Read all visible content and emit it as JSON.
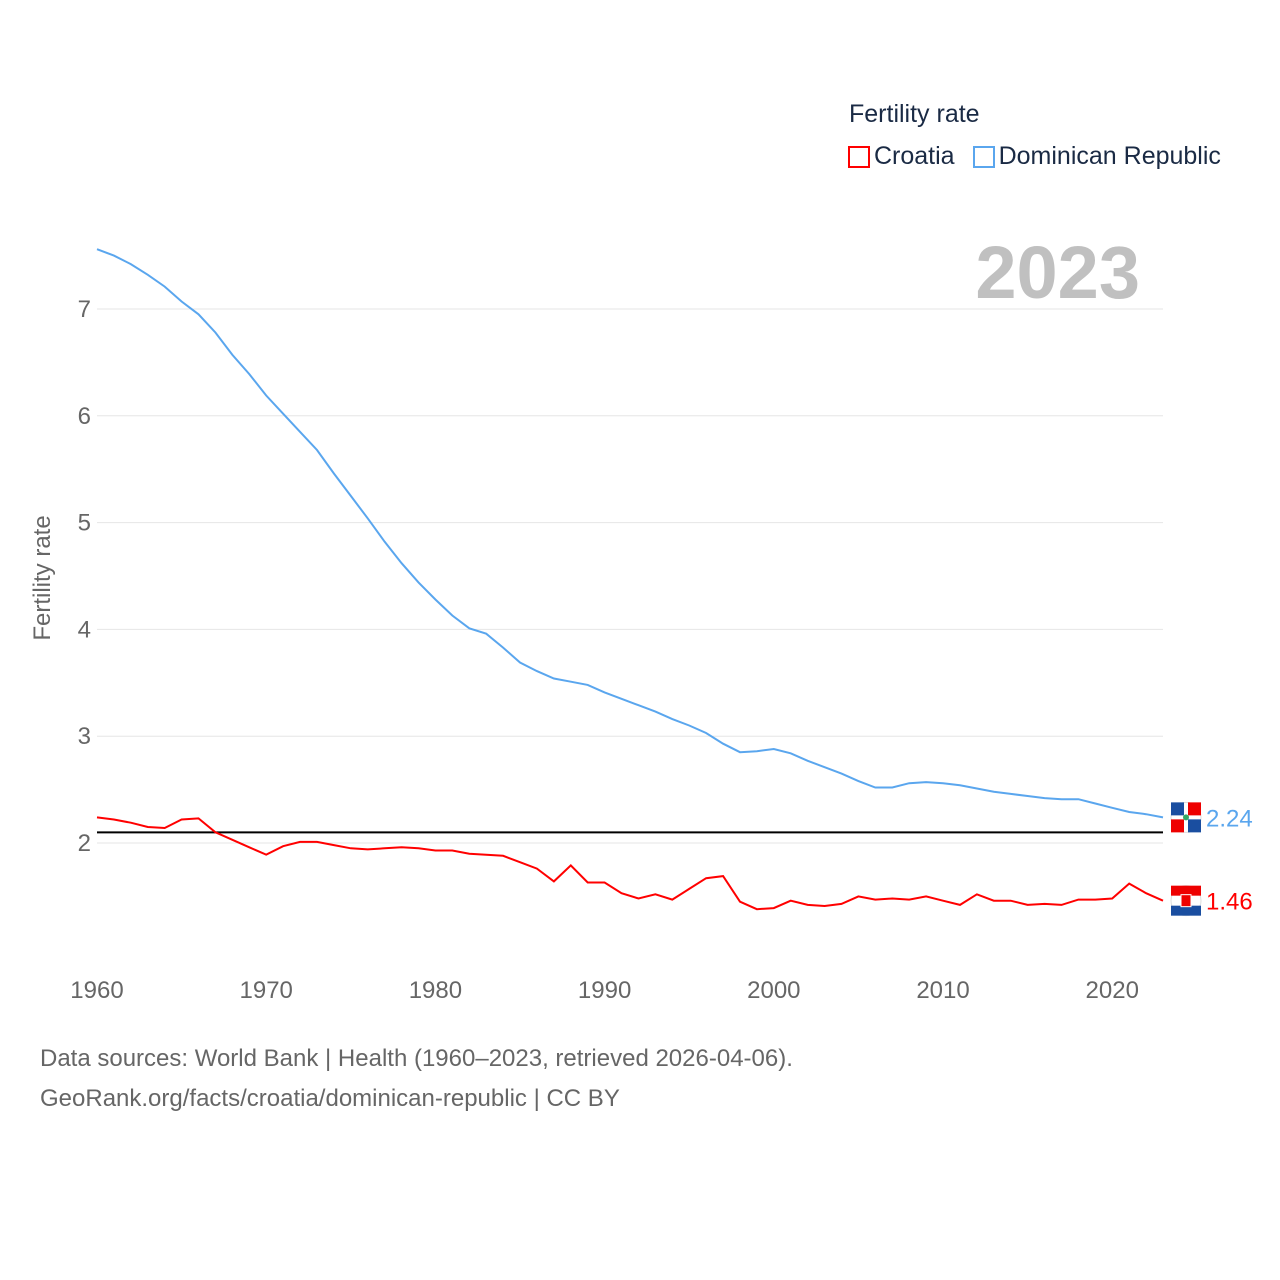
{
  "chart_data": {
    "type": "line",
    "title": "Fertility rate",
    "ylabel": "Fertility rate",
    "xlabel": "",
    "year_label": "2023",
    "xlim": [
      1960,
      2023
    ],
    "ylim": [
      1,
      7.6
    ],
    "yticks": [
      2,
      3,
      4,
      5,
      6,
      7
    ],
    "xticks": [
      1960,
      1970,
      1980,
      1990,
      2000,
      2010,
      2020
    ],
    "grid": true,
    "legend_position": "top-right",
    "reference_line": 2.1,
    "x": [
      1960,
      1961,
      1962,
      1963,
      1964,
      1965,
      1966,
      1967,
      1968,
      1969,
      1970,
      1971,
      1972,
      1973,
      1974,
      1975,
      1976,
      1977,
      1978,
      1979,
      1980,
      1981,
      1982,
      1983,
      1984,
      1985,
      1986,
      1987,
      1988,
      1989,
      1990,
      1991,
      1992,
      1993,
      1994,
      1995,
      1996,
      1997,
      1998,
      1999,
      2000,
      2001,
      2002,
      2003,
      2004,
      2005,
      2006,
      2007,
      2008,
      2009,
      2010,
      2011,
      2012,
      2013,
      2014,
      2015,
      2016,
      2017,
      2018,
      2019,
      2020,
      2021,
      2022,
      2023
    ],
    "series": [
      {
        "name": "Croatia",
        "color": "#ff0000",
        "end_label": "1.46",
        "values": [
          2.24,
          2.22,
          2.19,
          2.15,
          2.14,
          2.22,
          2.23,
          2.1,
          2.03,
          1.96,
          1.89,
          1.97,
          2.01,
          2.01,
          1.98,
          1.95,
          1.94,
          1.95,
          1.96,
          1.95,
          1.93,
          1.93,
          1.9,
          1.89,
          1.88,
          1.82,
          1.76,
          1.64,
          1.79,
          1.63,
          1.63,
          1.53,
          1.48,
          1.52,
          1.47,
          1.57,
          1.67,
          1.69,
          1.45,
          1.38,
          1.39,
          1.46,
          1.42,
          1.41,
          1.43,
          1.5,
          1.47,
          1.48,
          1.47,
          1.5,
          1.46,
          1.42,
          1.52,
          1.46,
          1.46,
          1.42,
          1.43,
          1.42,
          1.47,
          1.47,
          1.48,
          1.62,
          1.53,
          1.46
        ]
      },
      {
        "name": "Dominican Republic",
        "color": "#5aa6ee",
        "end_label": "2.24",
        "values": [
          7.56,
          7.5,
          7.42,
          7.32,
          7.21,
          7.07,
          6.95,
          6.78,
          6.57,
          6.39,
          6.19,
          6.02,
          5.85,
          5.68,
          5.46,
          5.25,
          5.04,
          4.82,
          4.62,
          4.44,
          4.28,
          4.13,
          4.01,
          3.96,
          3.83,
          3.69,
          3.61,
          3.54,
          3.51,
          3.48,
          3.41,
          3.35,
          3.29,
          3.23,
          3.16,
          3.1,
          3.03,
          2.93,
          2.85,
          2.86,
          2.88,
          2.84,
          2.77,
          2.71,
          2.65,
          2.58,
          2.52,
          2.52,
          2.56,
          2.57,
          2.56,
          2.54,
          2.51,
          2.48,
          2.46,
          2.44,
          2.42,
          2.41,
          2.41,
          2.37,
          2.33,
          2.29,
          2.27,
          2.24
        ]
      }
    ]
  },
  "footer": {
    "line1": "Data sources: World Bank | Health (1960–2023, retrieved 2026-04-06).",
    "line2": "GeoRank.org/facts/croatia/dominican-republic | CC BY"
  }
}
